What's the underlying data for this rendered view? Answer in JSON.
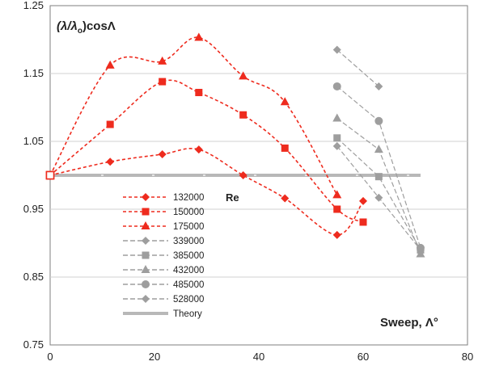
{
  "chart_data": {
    "type": "line",
    "xlabel": "Sweep, Λ°",
    "ylabel_base": "(λ/λ",
    "ylabel_sub": "o",
    "ylabel_tail": ")cosΛ",
    "xlim": [
      0,
      80
    ],
    "ylim": [
      0.75,
      1.25
    ],
    "xticks": [
      "0",
      "20",
      "40",
      "60",
      "80"
    ],
    "yticks": [
      "0.75",
      "0.85",
      "0.95",
      "1.05",
      "1.15",
      "1.25"
    ],
    "legend_title": "Re",
    "legend_position": "lower-left",
    "series": [
      {
        "name": "132000",
        "color": "#ee2b1e",
        "marker": "diamond",
        "dash": "4,3",
        "x": [
          0,
          11.5,
          21.5,
          28.5,
          37,
          45,
          55,
          60
        ],
        "y": [
          1.0,
          1.02,
          1.031,
          1.038,
          1.0,
          0.966,
          0.912,
          0.962
        ]
      },
      {
        "name": "150000",
        "color": "#ee2b1e",
        "marker": "square",
        "dash": "4,3",
        "x": [
          0,
          11.5,
          21.5,
          28.5,
          37,
          45,
          55,
          60
        ],
        "y": [
          1.0,
          1.075,
          1.138,
          1.122,
          1.089,
          1.04,
          0.95,
          0.931
        ]
      },
      {
        "name": "175000",
        "color": "#ee2b1e",
        "marker": "triangle",
        "dash": "4,3",
        "x": [
          0,
          11.5,
          21.5,
          28.5,
          37,
          45,
          55
        ],
        "y": [
          1.0,
          1.162,
          1.168,
          1.203,
          1.146,
          1.108,
          0.971
        ]
      },
      {
        "name": "339000",
        "color": "#9e9e9e",
        "marker": "diamond",
        "dash": "6,3",
        "x": [
          55,
          63,
          71
        ],
        "y": [
          1.043,
          0.967,
          0.89
        ]
      },
      {
        "name": "385000",
        "color": "#9e9e9e",
        "marker": "square",
        "dash": "6,3",
        "x": [
          55,
          63,
          71
        ],
        "y": [
          1.055,
          0.998,
          0.89
        ]
      },
      {
        "name": "432000",
        "color": "#9e9e9e",
        "marker": "triangle",
        "dash": "6,3",
        "x": [
          55,
          63,
          71
        ],
        "y": [
          1.084,
          1.038,
          0.884
        ]
      },
      {
        "name": "485000",
        "color": "#9e9e9e",
        "marker": "circle",
        "dash": "6,3",
        "x": [
          55,
          63,
          71
        ],
        "y": [
          1.131,
          1.08,
          0.893
        ]
      },
      {
        "name": "528000",
        "color": "#9e9e9e",
        "marker": "diamond",
        "dash": "6,3",
        "x": [
          55,
          63
        ],
        "y": [
          1.185,
          1.131
        ]
      },
      {
        "name": "Theory",
        "color": "#b8b8b8",
        "marker": "none",
        "dash": "",
        "x": [
          0,
          71
        ],
        "y": [
          1.0,
          1.0
        ]
      }
    ]
  }
}
